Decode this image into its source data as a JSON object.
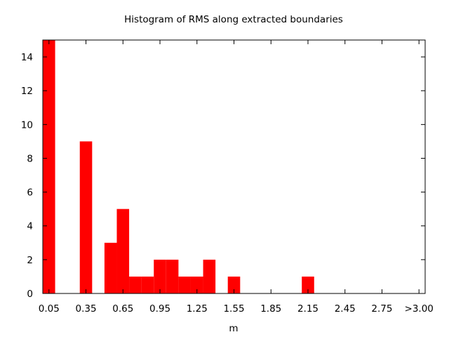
{
  "chart_data": {
    "type": "bar",
    "title": "Histogram of RMS along extracted boundaries",
    "xlabel": "m",
    "ylabel": "",
    "bin_width": 0.1,
    "bins": [
      {
        "x": 0.05,
        "count": 15
      },
      {
        "x": 0.35,
        "count": 9
      },
      {
        "x": 0.55,
        "count": 3
      },
      {
        "x": 0.65,
        "count": 5
      },
      {
        "x": 0.75,
        "count": 1
      },
      {
        "x": 0.85,
        "count": 1
      },
      {
        "x": 0.95,
        "count": 2
      },
      {
        "x": 1.05,
        "count": 2
      },
      {
        "x": 1.15,
        "count": 1
      },
      {
        "x": 1.25,
        "count": 1
      },
      {
        "x": 1.35,
        "count": 2
      },
      {
        "x": 1.55,
        "count": 1
      },
      {
        "x": 2.15,
        "count": 1
      }
    ],
    "x_ticks": [
      {
        "value": 0.05,
        "label": "0.05"
      },
      {
        "value": 0.35,
        "label": "0.35"
      },
      {
        "value": 0.65,
        "label": "0.65"
      },
      {
        "value": 0.95,
        "label": "0.95"
      },
      {
        "value": 1.25,
        "label": "1.25"
      },
      {
        "value": 1.55,
        "label": "1.55"
      },
      {
        "value": 1.85,
        "label": "1.85"
      },
      {
        "value": 2.15,
        "label": "2.15"
      },
      {
        "value": 2.45,
        "label": "2.45"
      },
      {
        "value": 2.75,
        "label": "2.75"
      },
      {
        "value": 3.05,
        "label": ">3.00"
      }
    ],
    "y_ticks": [
      0,
      2,
      4,
      6,
      8,
      10,
      12,
      14
    ],
    "xlim": [
      0.0,
      3.1
    ],
    "ylim": [
      0,
      15
    ],
    "grid": false,
    "legend": "none",
    "bar_color": "#ff0000"
  }
}
